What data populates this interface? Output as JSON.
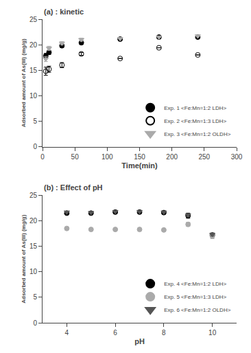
{
  "chart_data": [
    {
      "type": "scatter",
      "title": "(a) : kinetic",
      "xlabel": "Time(min)",
      "ylabel": "Adsorbed amount of As(III) (mg/g)",
      "xlim": [
        0,
        300
      ],
      "ylim": [
        0,
        25
      ],
      "xticks": [
        0,
        50,
        100,
        150,
        200,
        250,
        300
      ],
      "yticks": [
        0,
        5,
        10,
        15,
        20,
        25
      ],
      "grid": false,
      "legend": "lower right",
      "series": [
        {
          "name": "Exp. 1 <Fe:Mn=1:2 LDH>",
          "x": [
            5,
            10,
            30,
            60,
            120,
            180,
            240
          ],
          "values": [
            17.8,
            18.5,
            19.8,
            20.4,
            21.1,
            21.5,
            21.5
          ],
          "yerr": [
            0.5,
            0.4,
            0.3,
            0.3,
            0,
            0,
            0
          ],
          "marker": "circle",
          "color": "black"
        },
        {
          "name": "Exp. 2 <Fe:Mn=1:3 LDH>",
          "x": [
            5,
            10,
            30,
            60,
            120,
            180,
            240
          ],
          "values": [
            14.8,
            15.2,
            16.0,
            18.2,
            17.3,
            19.4,
            18.0
          ],
          "yerr": [
            0.8,
            0.6,
            0.5,
            0.3,
            0,
            0,
            0
          ],
          "marker": "circle-open",
          "color": "black"
        },
        {
          "name": "Exp. 3 <Fe:Mn=1:2 OLDH>",
          "x": [
            5,
            10,
            30,
            60,
            120,
            180,
            240
          ],
          "values": [
            17.2,
            19.3,
            20.3,
            21.0,
            21.2,
            21.5,
            21.7
          ],
          "yerr": [
            0.5,
            0.4,
            0.3,
            0.3,
            0,
            0,
            0
          ],
          "marker": "triangle-down",
          "color": "#aaaaaa"
        }
      ]
    },
    {
      "type": "scatter",
      "title": "(b) : Effect of pH",
      "xlabel": "pH",
      "ylabel": "Adsorbed amount of As(III) (mg/g)",
      "xlim": [
        3,
        11
      ],
      "ylim": [
        0,
        25
      ],
      "xticks": [
        4,
        6,
        8,
        10
      ],
      "yticks": [
        0,
        5,
        10,
        15,
        20,
        25
      ],
      "grid": false,
      "legend": "lower right",
      "series": [
        {
          "name": "Exp. 4 <Fe:Mn=1:2 LDH>",
          "x": [
            4,
            5,
            6,
            7,
            8,
            9,
            10
          ],
          "values": [
            21.5,
            21.5,
            21.7,
            21.7,
            21.6,
            21.0,
            17.2
          ],
          "yerr": [
            0,
            0,
            0,
            0,
            0,
            0.5,
            0.4
          ],
          "marker": "circle",
          "color": "black"
        },
        {
          "name": "Exp. 5 <Fe:Mn=1:3 LDH>",
          "x": [
            4,
            5,
            6,
            7,
            8,
            9,
            10
          ],
          "values": [
            18.5,
            18.3,
            18.3,
            18.3,
            18.2,
            19.3,
            17.0
          ],
          "yerr": [
            0,
            0,
            0,
            0,
            0,
            0.4,
            0.5
          ],
          "marker": "circle",
          "color": "#aaaaaa"
        },
        {
          "name": "Exp. 6 <Fe:Mn=1:2 OLDH>",
          "x": [
            4,
            5,
            6,
            7,
            8,
            9,
            10
          ],
          "values": [
            21.7,
            21.6,
            21.8,
            21.8,
            21.7,
            21.1,
            17.3
          ],
          "yerr": [
            0,
            0,
            0,
            0,
            0,
            0.3,
            0.3
          ],
          "marker": "triangle-down",
          "color": "#555555"
        }
      ]
    }
  ]
}
